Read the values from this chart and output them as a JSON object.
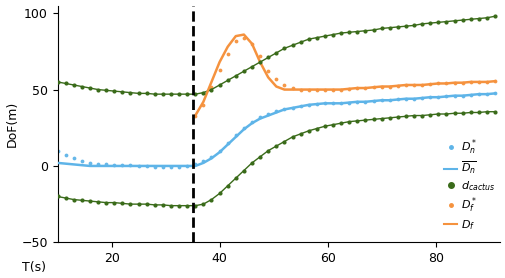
{
  "xlabel": "T(s)",
  "ylabel": "DoF(m)",
  "xlim": [
    10,
    92
  ],
  "ylim": [
    -50,
    105
  ],
  "yticks": [
    -50,
    0,
    50,
    100
  ],
  "xticks": [
    20,
    40,
    60,
    80
  ],
  "dashed_vline_x": 35,
  "colors": {
    "blue": "#5EB4E8",
    "orange": "#F5923E",
    "green": "#3A6B1A"
  },
  "t": [
    10,
    11.5,
    13,
    14.5,
    16,
    17.5,
    19,
    20.5,
    22,
    23.5,
    25,
    26.5,
    28,
    29.5,
    31,
    32.5,
    34,
    35.5,
    37,
    38.5,
    40,
    41.5,
    43,
    44.5,
    46,
    47.5,
    49,
    50.5,
    52,
    53.5,
    55,
    56.5,
    58,
    59.5,
    61,
    62.5,
    64,
    65.5,
    67,
    68.5,
    70,
    71.5,
    73,
    74.5,
    76,
    77.5,
    79,
    80.5,
    82,
    83.5,
    85,
    86.5,
    88,
    89.5,
    91
  ],
  "Dn_star_dots": [
    10,
    7,
    5,
    3,
    2,
    1.5,
    1,
    0.5,
    0.5,
    0.5,
    0,
    0,
    -0.5,
    -0.5,
    -0.5,
    -0.5,
    0,
    1,
    3,
    6,
    10,
    15,
    20,
    25,
    29,
    32,
    34,
    36,
    37,
    38,
    39,
    40,
    40.5,
    41,
    41,
    41,
    41.5,
    42,
    42,
    42.5,
    43,
    43,
    43.5,
    44,
    44,
    44.5,
    45,
    45,
    45.5,
    46,
    46,
    46.5,
    47,
    47,
    47.5
  ],
  "Dn_bar_line": [
    2,
    1.5,
    1,
    0.5,
    0,
    0,
    0,
    0,
    0,
    0,
    0,
    0,
    0,
    0,
    0,
    0,
    0,
    0,
    2,
    5,
    9,
    14,
    19,
    24,
    28,
    31,
    33,
    35,
    37,
    38,
    39,
    40,
    40.5,
    41,
    41,
    41,
    41.5,
    42,
    42,
    42.5,
    43,
    43,
    43.5,
    44,
    44,
    44.5,
    45,
    45,
    45.5,
    46,
    46,
    46.5,
    47,
    47,
    47.5
  ],
  "d_cactus_upper": [
    55,
    54,
    53,
    52,
    51,
    50,
    49.5,
    49,
    48.5,
    48,
    47.5,
    47.5,
    47,
    47,
    47,
    47,
    47,
    47,
    48,
    50,
    53,
    56,
    59,
    62,
    65,
    68,
    71,
    74,
    77,
    79,
    81,
    83,
    84,
    85,
    86,
    87,
    87.5,
    88,
    88.5,
    89,
    90,
    90.5,
    91,
    91.5,
    92,
    93,
    93.5,
    94,
    94.5,
    95,
    95.5,
    96,
    96.5,
    97,
    98
  ],
  "d_cactus_lower": [
    -20,
    -21,
    -22,
    -22.5,
    -23,
    -23.5,
    -24,
    -24,
    -24.5,
    -25,
    -25,
    -25,
    -25.5,
    -25.5,
    -26,
    -26,
    -26,
    -26,
    -25,
    -22,
    -18,
    -13,
    -8,
    -3,
    2,
    6,
    10,
    13,
    16,
    19,
    21,
    23,
    24.5,
    26,
    27,
    28,
    29,
    29.5,
    30,
    30.5,
    31,
    31.5,
    32,
    32.5,
    33,
    33,
    33.5,
    34,
    34,
    34.5,
    34.5,
    35,
    35,
    35.5,
    35.5
  ],
  "Df_star_dots": [
    null,
    null,
    null,
    null,
    null,
    null,
    null,
    null,
    null,
    null,
    null,
    null,
    null,
    null,
    null,
    null,
    null,
    33,
    40,
    52,
    63,
    73,
    82,
    84,
    80,
    72,
    62,
    57,
    53,
    51,
    50,
    50,
    50,
    50,
    50,
    50,
    50.5,
    51,
    51,
    51.5,
    52,
    52,
    52.5,
    53,
    53,
    53,
    53.5,
    54,
    54,
    54.5,
    54.5,
    55,
    55,
    55,
    55.5
  ],
  "Df_line": [
    null,
    null,
    null,
    null,
    null,
    null,
    null,
    null,
    null,
    null,
    null,
    null,
    null,
    null,
    null,
    null,
    null,
    33,
    42,
    55,
    68,
    78,
    85,
    86,
    80,
    68,
    58,
    52,
    50,
    50,
    50,
    50,
    50,
    50,
    50,
    50,
    50.5,
    51,
    51,
    51.5,
    52,
    52,
    52.5,
    53,
    53,
    53,
    53.5,
    54,
    54,
    54.5,
    54.5,
    55,
    55,
    55,
    55.5
  ]
}
